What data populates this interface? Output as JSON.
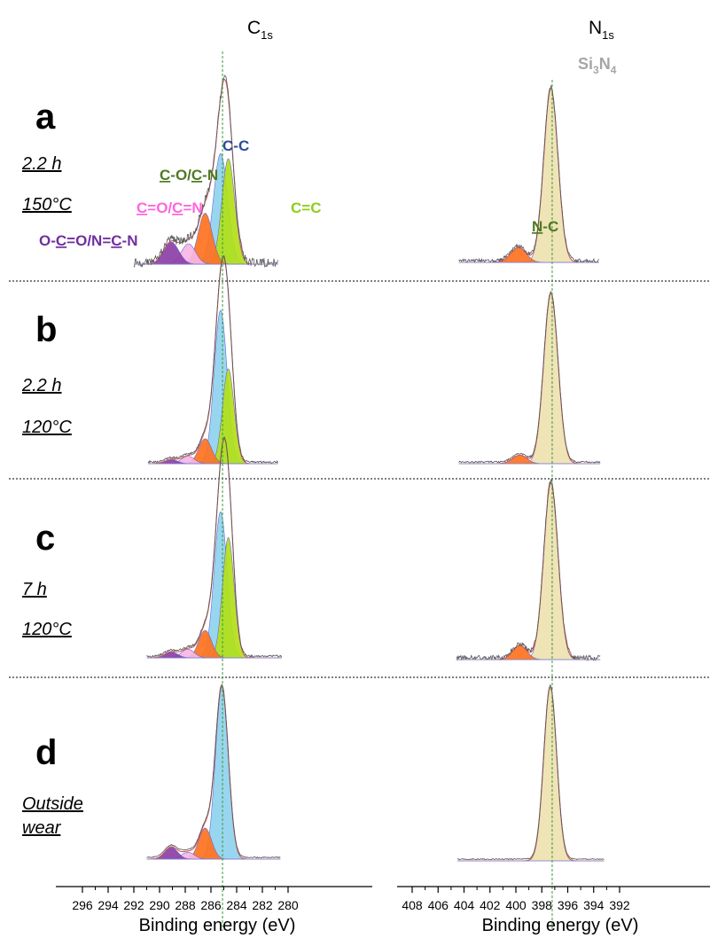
{
  "headers": {
    "c": {
      "main": "C",
      "sub": "1s"
    },
    "n": {
      "main": "N",
      "sub": "1s"
    },
    "si3n4": {
      "p1": "Si",
      "s1": "3",
      "p2": "N",
      "s2": "4"
    }
  },
  "panels": [
    {
      "letter": "a",
      "line1": "2.2 h",
      "line2": "150°C"
    },
    {
      "letter": "b",
      "line1": "2.2 h",
      "line2": "120°C"
    },
    {
      "letter": "c",
      "line1": "7 h",
      "line2": "120°C"
    },
    {
      "letter": "d",
      "line1": "Outside",
      "line2": "wear"
    }
  ],
  "peak_labels": {
    "cc": "C-C",
    "co": {
      "u1": "C",
      "t1": "-O/",
      "u2": "C",
      "t2": "-N"
    },
    "coo": {
      "u1": "C",
      "t1": "=O/",
      "u2": "C",
      "t2": "=N"
    },
    "occ": {
      "t1": "O-",
      "u1": "C",
      "t2": "=O/N=",
      "u2": "C",
      "t3": "-N"
    },
    "cdc": "C=C",
    "nc": {
      "u1": "N",
      "t1": "-C"
    }
  },
  "colors": {
    "cc": "#2e4a9a",
    "co": "#4e7a23",
    "coo": "#ff66dd",
    "occ": "#7030a0",
    "cdc": "#8ccf1a",
    "nc": "#4e7a23",
    "si3n4": "#a6a6a6",
    "fill_cc": "#8fd3ee",
    "fill_cdc": "#b2e018",
    "fill_co": "#ff7220",
    "fill_coo": "#f7b6e4",
    "fill_occ": "#8c3fa7",
    "fill_si": "#ede2b0",
    "fill_nc": "#ff7220",
    "envelope": "#c96060",
    "raw": "#555555",
    "guide": "#3c9a3c"
  },
  "axes": {
    "c": {
      "title": "Binding energy (eV)",
      "ticks": [
        "296",
        "294",
        "292",
        "290",
        "288",
        "286",
        "284",
        "282",
        "280"
      ]
    },
    "n": {
      "title": "Binding energy (eV)",
      "ticks": [
        "408",
        "406",
        "404",
        "402",
        "400",
        "398",
        "396",
        "394",
        "392"
      ]
    }
  },
  "chart_data": [
    {
      "type": "area",
      "title": "C1s",
      "xlabel": "Binding energy (eV)",
      "xlim": [
        296.0,
        279.5
      ],
      "reversed_x": true,
      "reference_line_ev": 285.1,
      "panels": [
        {
          "panel": "a",
          "range": [
            292.0,
            280.8
          ],
          "noise": 0.025,
          "components": [
            {
              "name": "C-C",
              "fill": "fill_cc",
              "center": 285.25,
              "height": 0.65,
              "width": 0.55
            },
            {
              "name": "C=C",
              "fill": "fill_cdc",
              "center": 284.65,
              "height": 0.62,
              "width": 0.5
            },
            {
              "name": "C-O/C-N",
              "fill": "fill_co",
              "center": 286.45,
              "height": 0.3,
              "width": 0.55
            },
            {
              "name": "C=O/C=N",
              "fill": "fill_coo",
              "center": 287.75,
              "height": 0.12,
              "width": 0.55
            },
            {
              "name": "O-C=O/N=C-N",
              "fill": "fill_occ",
              "center": 289.1,
              "height": 0.13,
              "width": 0.6
            }
          ]
        },
        {
          "panel": "b",
          "range": [
            290.9,
            280.8
          ],
          "noise": 0.006,
          "components": [
            {
              "name": "C-C",
              "fill": "fill_cc",
              "center": 285.25,
              "height": 0.92,
              "width": 0.5
            },
            {
              "name": "C=C",
              "fill": "fill_cdc",
              "center": 284.65,
              "height": 0.57,
              "width": 0.45
            },
            {
              "name": "C-O/C-N",
              "fill": "fill_co",
              "center": 286.45,
              "height": 0.15,
              "width": 0.5
            },
            {
              "name": "C=O/C=N",
              "fill": "fill_coo",
              "center": 287.8,
              "height": 0.045,
              "width": 0.5
            },
            {
              "name": "O-C=O/N=C-N",
              "fill": "fill_occ",
              "center": 289.1,
              "height": 0.025,
              "width": 0.5
            }
          ]
        },
        {
          "panel": "c",
          "range": [
            291.0,
            280.5
          ],
          "noise": 0.006,
          "components": [
            {
              "name": "C-C",
              "fill": "fill_cc",
              "center": 285.25,
              "height": 0.85,
              "width": 0.5
            },
            {
              "name": "C=C",
              "fill": "fill_cdc",
              "center": 284.65,
              "height": 0.7,
              "width": 0.45
            },
            {
              "name": "C-O/C-N",
              "fill": "fill_co",
              "center": 286.45,
              "height": 0.16,
              "width": 0.5
            },
            {
              "name": "C=O/C=N",
              "fill": "fill_coo",
              "center": 287.8,
              "height": 0.05,
              "width": 0.5
            },
            {
              "name": "O-C=O/N=C-N",
              "fill": "fill_occ",
              "center": 289.1,
              "height": 0.035,
              "width": 0.5
            }
          ]
        },
        {
          "panel": "d",
          "range": [
            291.0,
            280.6
          ],
          "noise": 0.003,
          "components": [
            {
              "name": "C-C",
              "fill": "fill_cc",
              "center": 285.15,
              "height": 1.0,
              "width": 0.5
            },
            {
              "name": "C-O/C-N",
              "fill": "fill_co",
              "center": 286.45,
              "height": 0.18,
              "width": 0.5
            },
            {
              "name": "C=O/C=N",
              "fill": "fill_coo",
              "center": 287.8,
              "height": 0.04,
              "width": 0.5
            },
            {
              "name": "O-C=O/N=C-N",
              "fill": "fill_occ",
              "center": 289.1,
              "height": 0.07,
              "width": 0.5
            }
          ]
        }
      ]
    },
    {
      "type": "area",
      "title": "N1s",
      "xlabel": "Binding energy (eV)",
      "xlim": [
        409.0,
        392.0
      ],
      "reversed_x": true,
      "reference_line_ev": 397.2,
      "panels": [
        {
          "panel": "a",
          "range": [
            404.4,
            393.6
          ],
          "noise": 0.01,
          "components": [
            {
              "name": "Si3N4",
              "fill": "fill_si",
              "center": 397.3,
              "height": 1.0,
              "width": 0.55
            },
            {
              "name": "N-C",
              "fill": "fill_nc",
              "center": 399.8,
              "height": 0.085,
              "width": 0.6
            }
          ]
        },
        {
          "panel": "b",
          "range": [
            404.4,
            393.5
          ],
          "noise": 0.005,
          "components": [
            {
              "name": "Si3N4",
              "fill": "fill_si",
              "center": 397.3,
              "height": 1.0,
              "width": 0.55
            },
            {
              "name": "N-C",
              "fill": "fill_nc",
              "center": 399.7,
              "height": 0.05,
              "width": 0.55
            }
          ]
        },
        {
          "panel": "c",
          "range": [
            404.6,
            393.5
          ],
          "noise": 0.014,
          "components": [
            {
              "name": "Si3N4",
              "fill": "fill_si",
              "center": 397.3,
              "height": 1.0,
              "width": 0.55
            },
            {
              "name": "N-C",
              "fill": "fill_nc",
              "center": 399.7,
              "height": 0.08,
              "width": 0.55
            }
          ]
        },
        {
          "panel": "d",
          "range": [
            404.5,
            393.2
          ],
          "noise": 0.003,
          "components": [
            {
              "name": "Si3N4",
              "fill": "fill_si",
              "center": 397.35,
              "height": 1.0,
              "width": 0.5
            }
          ]
        }
      ]
    }
  ]
}
